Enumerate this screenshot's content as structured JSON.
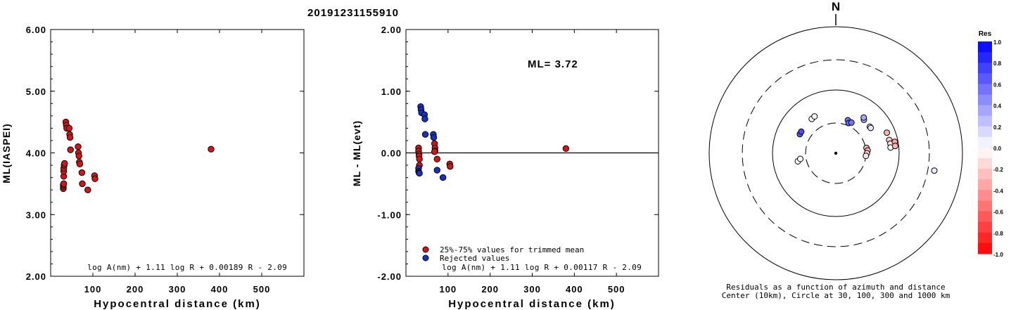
{
  "page_title": "20191231155910",
  "chart_data": [
    {
      "type": "scatter",
      "ylabel": "ML(IASPEI)",
      "xlabel": "Hypocentral distance (km)",
      "formula": "log A(nm) + 1.11 log R + 0.00189 R - 2.09",
      "xlim": [
        0,
        600
      ],
      "ylim": [
        2.0,
        6.0
      ],
      "x_ticks": [
        "100",
        "200",
        "300",
        "400",
        "500"
      ],
      "y_ticks": [
        "2.00",
        "3.00",
        "4.00",
        "5.00",
        "6.00"
      ],
      "series": [
        {
          "color": "#dd1111",
          "points": [
            [
              30,
              3.42
            ],
            [
              30,
              3.45
            ],
            [
              30,
              3.48
            ],
            [
              31,
              3.5
            ],
            [
              31,
              3.62
            ],
            [
              31,
              3.7
            ],
            [
              31,
              3.75
            ],
            [
              32,
              3.8
            ],
            [
              33,
              3.83
            ],
            [
              36,
              4.5
            ],
            [
              37,
              4.45
            ],
            [
              38,
              4.4
            ],
            [
              44,
              4.4
            ],
            [
              45,
              4.3
            ],
            [
              46,
              4.25
            ],
            [
              47,
              4.05
            ],
            [
              65,
              4.1
            ],
            [
              66,
              4.0
            ],
            [
              67,
              3.95
            ],
            [
              68,
              3.85
            ],
            [
              69,
              3.82
            ],
            [
              74,
              3.68
            ],
            [
              75,
              3.5
            ],
            [
              88,
              3.4
            ],
            [
              104,
              3.63
            ],
            [
              105,
              3.58
            ],
            [
              380,
              4.06
            ]
          ]
        }
      ]
    },
    {
      "type": "scatter",
      "ylabel": "ML - ML(evt)",
      "xlabel": "Hypocentral distance (km)",
      "formula": "log A(nm) + 1.11 log R + 0.00117 R - 2.09",
      "annotation": "ML= 3.72",
      "xlim": [
        0,
        600
      ],
      "ylim": [
        -2.0,
        2.0
      ],
      "x_ticks": [
        "100",
        "200",
        "300",
        "400",
        "500"
      ],
      "y_ticks": [
        "-2.00",
        "-1.00",
        "0.00",
        "1.00",
        "2.00"
      ],
      "legend": [
        {
          "label": "25%-75% values for trimmed mean",
          "color": "#dd1111"
        },
        {
          "label": "Rejected values",
          "color": "#1133cc"
        }
      ],
      "series": [
        {
          "color": "#dd1111",
          "points": [
            [
              30,
              0.08
            ],
            [
              30,
              0.03
            ],
            [
              31,
              -0.02
            ],
            [
              31,
              -0.05
            ],
            [
              32,
              -0.1
            ],
            [
              32,
              -0.2
            ],
            [
              68,
              0.15
            ],
            [
              69,
              0.08
            ],
            [
              69,
              0.03
            ],
            [
              68,
              0.02
            ],
            [
              74,
              -0.1
            ],
            [
              104,
              -0.18
            ],
            [
              105,
              -0.22
            ],
            [
              380,
              0.07
            ]
          ]
        },
        {
          "color": "#1133cc",
          "points": [
            [
              30,
              -0.25
            ],
            [
              30,
              -0.3
            ],
            [
              31,
              -0.32
            ],
            [
              32,
              -0.33
            ],
            [
              35,
              0.75
            ],
            [
              36,
              0.7
            ],
            [
              37,
              0.65
            ],
            [
              44,
              0.62
            ],
            [
              45,
              0.55
            ],
            [
              46,
              0.3
            ],
            [
              65,
              0.3
            ],
            [
              66,
              0.25
            ],
            [
              74,
              -0.28
            ],
            [
              88,
              -0.4
            ]
          ]
        }
      ]
    },
    {
      "type": "polar-scatter",
      "north_label": "N",
      "caption_line1": "Residuals as a function of azimuth and distance",
      "caption_line2": "Center (10km), Circle at 30, 100, 300 and 1000 km",
      "rings_km": [
        30,
        100,
        300,
        1000
      ],
      "colorbar": {
        "title": "Res",
        "ticks": [
          "1.0",
          "0.8",
          "0.6",
          "0.4",
          "0.2",
          "0.0",
          "-0.2",
          "-0.4",
          "-0.6",
          "-0.8",
          "-1.0"
        ]
      },
      "points": [
        {
          "az": 325,
          "dist": 46,
          "res": 0.0
        },
        {
          "az": 330,
          "dist": 47,
          "res": 0.0
        },
        {
          "az": 298,
          "dist": 44,
          "res": 0.65
        },
        {
          "az": 302,
          "dist": 44,
          "res": 0.7
        },
        {
          "az": 258,
          "dist": 41,
          "res": 0.0
        },
        {
          "az": 261,
          "dist": 37,
          "res": 0.0
        },
        {
          "az": 20,
          "dist": 36,
          "res": 0.55
        },
        {
          "az": 23,
          "dist": 33,
          "res": 0.6
        },
        {
          "az": 27,
          "dist": 35,
          "res": 0.55
        },
        {
          "az": 40,
          "dist": 49,
          "res": 0.3
        },
        {
          "az": 38,
          "dist": 52,
          "res": 0.35
        },
        {
          "az": 52,
          "dist": 48,
          "res": 0.05
        },
        {
          "az": 54,
          "dist": 48,
          "res": 0.1
        },
        {
          "az": 80,
          "dist": 31,
          "res": -0.3
        },
        {
          "az": 85,
          "dist": 32,
          "res": -0.3
        },
        {
          "az": 90,
          "dist": 31,
          "res": -0.2
        },
        {
          "az": 95,
          "dist": 30,
          "res": -0.1
        },
        {
          "az": 68,
          "dist": 74,
          "res": -0.3
        },
        {
          "az": 76,
          "dist": 74,
          "res": -0.2
        },
        {
          "az": 80,
          "dist": 75,
          "res": -0.1
        },
        {
          "az": 84,
          "dist": 74,
          "res": 0.0
        },
        {
          "az": 79,
          "dist": 89,
          "res": -0.35
        },
        {
          "az": 83,
          "dist": 88,
          "res": -0.3
        },
        {
          "az": 100,
          "dist": 380,
          "res": 0.07
        }
      ]
    }
  ]
}
